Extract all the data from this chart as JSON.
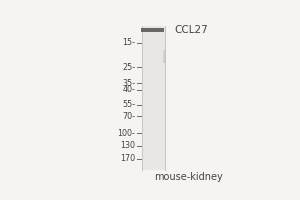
{
  "background_color": "#f5f4f2",
  "gel_bg_color": "#eceae7",
  "gel_lane_color": "#e8e6e3",
  "band_color": "#5a5550",
  "title_text": "mouse-kidney",
  "title_fontsize": 7.0,
  "label_ccl27": "CCL27",
  "label_ccl27_fontsize": 7.5,
  "marker_labels": [
    "170",
    "130",
    "100-",
    "70-",
    "55-",
    "40-",
    "35-",
    "25-",
    "15-"
  ],
  "marker_vals": [
    170,
    130,
    100,
    70,
    55,
    40,
    35,
    25,
    15
  ],
  "ymin": 11,
  "ymax": 210,
  "marker_fontsize": 5.8
}
